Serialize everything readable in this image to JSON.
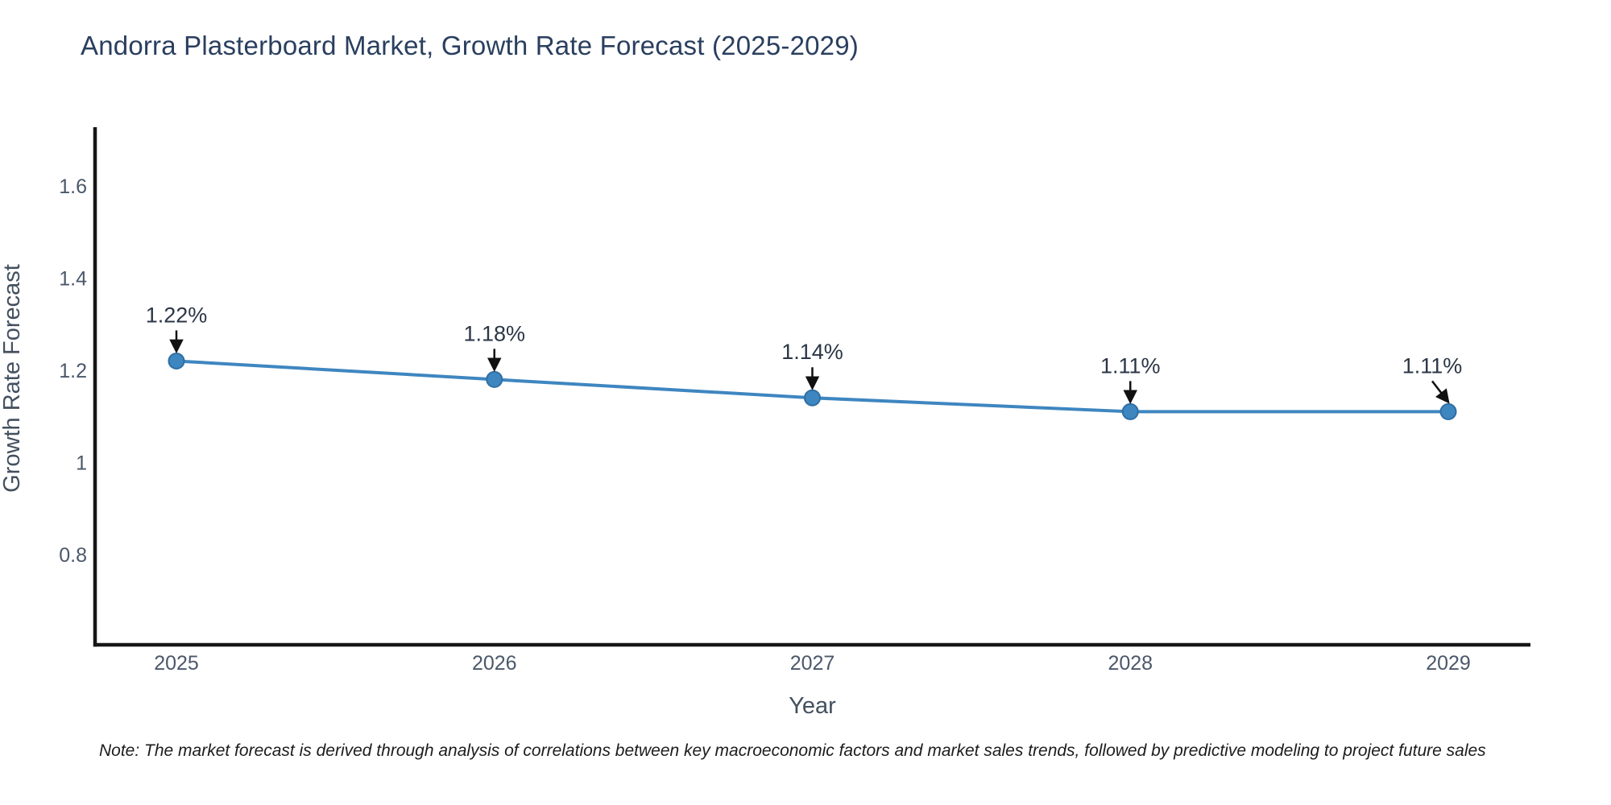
{
  "title": "Andorra Plasterboard Market, Growth Rate Forecast (2025-2029)",
  "note": "Note: The market forecast is derived through analysis of correlations between key macroeconomic factors and market sales trends, followed by predictive modeling to project future sales",
  "chart_data": {
    "type": "line",
    "title": "Andorra Plasterboard Market, Growth Rate Forecast (2025-2029)",
    "x": [
      2025,
      2026,
      2027,
      2028,
      2029
    ],
    "series": [
      {
        "name": "Growth Rate Forecast",
        "values": [
          1.22,
          1.18,
          1.14,
          1.11,
          1.11
        ]
      }
    ],
    "point_labels": [
      "1.22%",
      "1.18%",
      "1.14%",
      "1.11%",
      "1.11%"
    ],
    "xlabel": "Year",
    "ylabel": "Growth Rate Forecast",
    "yticks": [
      0.8,
      1,
      1.2,
      1.4,
      1.6
    ],
    "ylim": [
      0.604,
      1.724
    ],
    "grid": false,
    "legend": false,
    "line_color": "#3e86c0",
    "marker_fill_color": "#3e86c0",
    "marker_edge_color": "#2f6fa4",
    "axis_line_color": "#161616",
    "annotation_arrow_color": "#111111",
    "title_color": "#2a3f5f"
  }
}
